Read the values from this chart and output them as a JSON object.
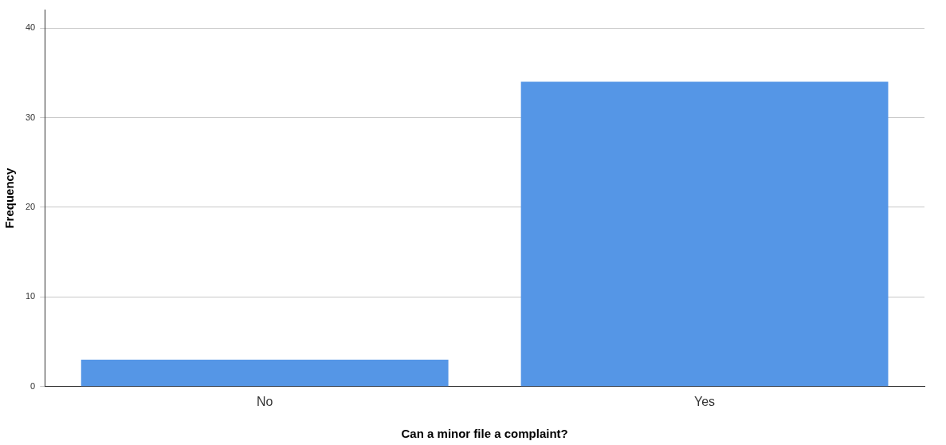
{
  "chart_data": {
    "type": "bar",
    "xlabel": "Can a minor file a complaint?",
    "ylabel": "Frequency",
    "categories": [
      "No",
      "Yes"
    ],
    "values": [
      3,
      34
    ],
    "color": "#5596e6",
    "ylim": [
      0,
      42
    ],
    "yticks": [
      0,
      10,
      20,
      30,
      40
    ],
    "grid": "y",
    "legend": false
  }
}
